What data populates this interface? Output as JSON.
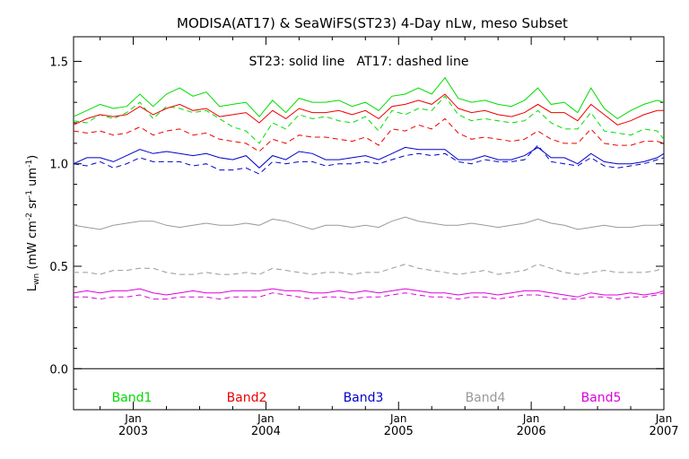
{
  "chart_data": {
    "type": "line",
    "title": "MODISA(AT17) & SeaWiFS(ST23) 4-Day nLw, meso Subset",
    "annotation": "ST23: solid line   AT17: dashed line",
    "ylabel": {
      "main": "L",
      "sub": "wn",
      "units_a": " (mW cm",
      "sup1": "-2",
      "units_b": " sr",
      "sup2": "-1",
      "units_c": " um",
      "sup3": "-1",
      "units_d": ")"
    },
    "xlim": [
      2002.55,
      2007.0
    ],
    "ylim": [
      -0.2,
      1.62
    ],
    "grid": false,
    "zero_line": true,
    "y_ticks": [
      {
        "value": 0.0,
        "label": "0.0"
      },
      {
        "value": 0.5,
        "label": "0.5"
      },
      {
        "value": 1.0,
        "label": "1.0"
      },
      {
        "value": 1.5,
        "label": "1.5"
      }
    ],
    "x_ticks": [
      {
        "value": 2003.0,
        "month": "Jan",
        "year": "2003"
      },
      {
        "value": 2004.0,
        "month": "Jan",
        "year": "2004"
      },
      {
        "value": 2005.0,
        "month": "Jan",
        "year": "2005"
      },
      {
        "value": 2006.0,
        "month": "Jan",
        "year": "2006"
      },
      {
        "value": 2007.0,
        "month": "Jan",
        "year": "2007"
      }
    ],
    "x": [
      2002.55,
      2002.65,
      2002.75,
      2002.85,
      2002.95,
      2003.05,
      2003.15,
      2003.25,
      2003.35,
      2003.45,
      2003.55,
      2003.65,
      2003.75,
      2003.85,
      2003.95,
      2004.05,
      2004.15,
      2004.25,
      2004.35,
      2004.45,
      2004.55,
      2004.65,
      2004.75,
      2004.85,
      2004.95,
      2005.05,
      2005.15,
      2005.25,
      2005.35,
      2005.45,
      2005.55,
      2005.65,
      2005.75,
      2005.85,
      2005.95,
      2006.05,
      2006.15,
      2006.25,
      2006.35,
      2006.45,
      2006.55,
      2006.65,
      2006.75,
      2006.85,
      2006.95,
      2007.0
    ],
    "legend": {
      "placement": "bottom",
      "entries": [
        {
          "label": "Band1",
          "color": "#00dd00"
        },
        {
          "label": "Band2",
          "color": "#ee0000"
        },
        {
          "label": "Band3",
          "color": "#0000cc"
        },
        {
          "label": "Band4",
          "color": "#999999"
        },
        {
          "label": "Band5",
          "color": "#dd00dd"
        }
      ]
    },
    "series": [
      {
        "band": "Band1",
        "instrument": "ST23",
        "style": "solid",
        "color": "#00dd00",
        "values": [
          1.23,
          1.26,
          1.29,
          1.27,
          1.28,
          1.34,
          1.28,
          1.34,
          1.37,
          1.33,
          1.35,
          1.28,
          1.29,
          1.3,
          1.23,
          1.31,
          1.25,
          1.32,
          1.3,
          1.3,
          1.31,
          1.28,
          1.3,
          1.26,
          1.33,
          1.34,
          1.37,
          1.34,
          1.42,
          1.32,
          1.3,
          1.31,
          1.29,
          1.28,
          1.31,
          1.37,
          1.29,
          1.3,
          1.25,
          1.37,
          1.27,
          1.22,
          1.26,
          1.29,
          1.31,
          1.3
        ]
      },
      {
        "band": "Band1",
        "instrument": "AT17",
        "style": "dashed",
        "color": "#00dd00",
        "values": [
          1.21,
          1.2,
          1.24,
          1.22,
          1.25,
          1.3,
          1.22,
          1.28,
          1.27,
          1.25,
          1.26,
          1.22,
          1.18,
          1.16,
          1.1,
          1.2,
          1.17,
          1.24,
          1.22,
          1.23,
          1.21,
          1.2,
          1.23,
          1.16,
          1.26,
          1.24,
          1.27,
          1.26,
          1.33,
          1.24,
          1.21,
          1.22,
          1.21,
          1.2,
          1.21,
          1.26,
          1.2,
          1.17,
          1.17,
          1.25,
          1.16,
          1.15,
          1.14,
          1.17,
          1.16,
          1.12
        ]
      },
      {
        "band": "Band2",
        "instrument": "ST23",
        "style": "solid",
        "color": "#ee0000",
        "values": [
          1.19,
          1.22,
          1.24,
          1.23,
          1.24,
          1.28,
          1.24,
          1.27,
          1.29,
          1.26,
          1.27,
          1.23,
          1.24,
          1.25,
          1.2,
          1.26,
          1.22,
          1.27,
          1.25,
          1.25,
          1.26,
          1.24,
          1.26,
          1.22,
          1.28,
          1.29,
          1.31,
          1.29,
          1.34,
          1.27,
          1.25,
          1.26,
          1.24,
          1.23,
          1.25,
          1.29,
          1.25,
          1.25,
          1.21,
          1.29,
          1.24,
          1.19,
          1.21,
          1.24,
          1.26,
          1.26
        ]
      },
      {
        "band": "Band2",
        "instrument": "AT17",
        "style": "dashed",
        "color": "#ee0000",
        "values": [
          1.16,
          1.15,
          1.16,
          1.14,
          1.15,
          1.18,
          1.14,
          1.16,
          1.17,
          1.14,
          1.15,
          1.12,
          1.11,
          1.1,
          1.06,
          1.12,
          1.1,
          1.14,
          1.13,
          1.13,
          1.12,
          1.11,
          1.13,
          1.09,
          1.17,
          1.16,
          1.19,
          1.17,
          1.22,
          1.15,
          1.12,
          1.13,
          1.12,
          1.11,
          1.12,
          1.16,
          1.12,
          1.1,
          1.1,
          1.17,
          1.1,
          1.09,
          1.09,
          1.11,
          1.11,
          1.1
        ]
      },
      {
        "band": "Band3",
        "instrument": "ST23",
        "style": "solid",
        "color": "#0000cc",
        "values": [
          1.0,
          1.03,
          1.03,
          1.01,
          1.04,
          1.07,
          1.05,
          1.06,
          1.05,
          1.04,
          1.05,
          1.03,
          1.02,
          1.04,
          0.98,
          1.04,
          1.02,
          1.06,
          1.05,
          1.02,
          1.02,
          1.03,
          1.04,
          1.02,
          1.05,
          1.08,
          1.07,
          1.07,
          1.07,
          1.02,
          1.02,
          1.04,
          1.02,
          1.02,
          1.04,
          1.08,
          1.03,
          1.03,
          1.0,
          1.05,
          1.01,
          1.0,
          1.0,
          1.01,
          1.03,
          1.05
        ]
      },
      {
        "band": "Band3",
        "instrument": "AT17",
        "style": "dashed",
        "color": "#0000cc",
        "values": [
          1.0,
          0.99,
          1.01,
          0.98,
          1.0,
          1.03,
          1.01,
          1.01,
          1.01,
          0.99,
          1.0,
          0.97,
          0.97,
          0.98,
          0.95,
          1.01,
          1.0,
          1.01,
          1.01,
          0.99,
          1.0,
          1.0,
          1.01,
          1.0,
          1.02,
          1.04,
          1.05,
          1.04,
          1.05,
          1.01,
          1.0,
          1.02,
          1.01,
          1.01,
          1.02,
          1.09,
          1.01,
          1.0,
          0.99,
          1.03,
          0.99,
          0.98,
          0.99,
          1.0,
          1.02,
          1.03
        ]
      },
      {
        "band": "Band4",
        "instrument": "ST23",
        "style": "solid",
        "color": "#999999",
        "values": [
          0.7,
          0.69,
          0.68,
          0.7,
          0.71,
          0.72,
          0.72,
          0.7,
          0.69,
          0.7,
          0.71,
          0.7,
          0.7,
          0.71,
          0.7,
          0.73,
          0.72,
          0.7,
          0.68,
          0.7,
          0.7,
          0.69,
          0.7,
          0.69,
          0.72,
          0.74,
          0.72,
          0.71,
          0.7,
          0.7,
          0.71,
          0.7,
          0.69,
          0.7,
          0.71,
          0.73,
          0.71,
          0.7,
          0.68,
          0.69,
          0.7,
          0.69,
          0.69,
          0.7,
          0.7,
          0.71
        ]
      },
      {
        "band": "Band4",
        "instrument": "AT17",
        "style": "dashed",
        "color": "#999999",
        "values": [
          0.47,
          0.47,
          0.46,
          0.48,
          0.48,
          0.49,
          0.49,
          0.47,
          0.46,
          0.46,
          0.47,
          0.46,
          0.46,
          0.47,
          0.46,
          0.49,
          0.48,
          0.47,
          0.46,
          0.47,
          0.47,
          0.46,
          0.47,
          0.47,
          0.49,
          0.51,
          0.49,
          0.48,
          0.47,
          0.46,
          0.47,
          0.48,
          0.46,
          0.47,
          0.48,
          0.51,
          0.49,
          0.47,
          0.46,
          0.47,
          0.48,
          0.47,
          0.47,
          0.47,
          0.48,
          0.5
        ]
      },
      {
        "band": "Band5",
        "instrument": "ST23",
        "style": "solid",
        "color": "#dd00dd",
        "values": [
          0.37,
          0.38,
          0.37,
          0.38,
          0.38,
          0.39,
          0.37,
          0.36,
          0.37,
          0.38,
          0.37,
          0.37,
          0.38,
          0.38,
          0.38,
          0.39,
          0.38,
          0.38,
          0.37,
          0.37,
          0.38,
          0.37,
          0.38,
          0.37,
          0.38,
          0.39,
          0.38,
          0.37,
          0.37,
          0.36,
          0.37,
          0.37,
          0.36,
          0.37,
          0.38,
          0.38,
          0.37,
          0.36,
          0.35,
          0.37,
          0.36,
          0.36,
          0.37,
          0.36,
          0.37,
          0.38
        ]
      },
      {
        "band": "Band5",
        "instrument": "AT17",
        "style": "dashed",
        "color": "#dd00dd",
        "values": [
          0.35,
          0.35,
          0.34,
          0.35,
          0.35,
          0.36,
          0.34,
          0.34,
          0.35,
          0.35,
          0.35,
          0.34,
          0.35,
          0.35,
          0.35,
          0.37,
          0.36,
          0.35,
          0.34,
          0.35,
          0.35,
          0.34,
          0.35,
          0.35,
          0.36,
          0.37,
          0.36,
          0.35,
          0.35,
          0.34,
          0.35,
          0.35,
          0.34,
          0.35,
          0.36,
          0.36,
          0.35,
          0.34,
          0.34,
          0.35,
          0.35,
          0.34,
          0.35,
          0.35,
          0.36,
          0.37
        ]
      }
    ]
  }
}
